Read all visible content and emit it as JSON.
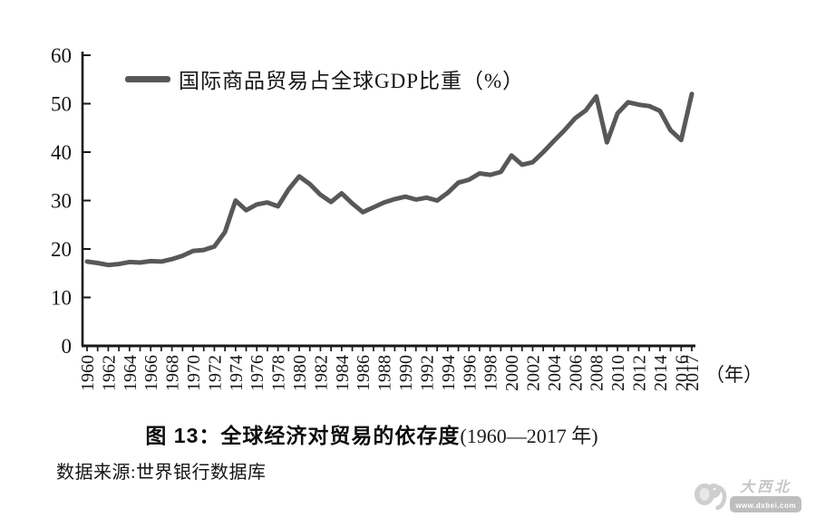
{
  "colors": {
    "line": "#58585b",
    "axis": "#1a1a1a",
    "text": "#141414",
    "watermark_gray": "#c6c6c6"
  },
  "legend": {
    "label": "国际商品贸易占全球GDP比重（%）"
  },
  "axes": {
    "x_unit_label": "（年）",
    "y_ticks": [
      0,
      10,
      20,
      30,
      40,
      50,
      60
    ],
    "x_tick_labels": [
      "1960",
      "1962",
      "1964",
      "1966",
      "1968",
      "1970",
      "1972",
      "1974",
      "1976",
      "1978",
      "1980",
      "1982",
      "1984",
      "1986",
      "1988",
      "1990",
      "1992",
      "1994",
      "1996",
      "1998",
      "2000",
      "2002",
      "2004",
      "2006",
      "2008",
      "2010",
      "2012",
      "2014",
      "2016",
      "2017"
    ]
  },
  "caption": {
    "title_bold": "图 13：全球经济对贸易的依存度",
    "title_range": "(1960—2017 年)"
  },
  "source": "数据来源:世界银行数据库",
  "watermark": {
    "brand": "大西北",
    "url": "www.dxbei.com"
  },
  "chart_data": {
    "type": "line",
    "title": "国际商品贸易占全球GDP比重（%）",
    "xlabel": "（年）",
    "ylabel": "",
    "ylim": [
      0,
      60
    ],
    "xlim": [
      1960,
      2017
    ],
    "grid": false,
    "legend_position": "top-left",
    "line_color": "#58585b",
    "x": [
      1960,
      1961,
      1962,
      1963,
      1964,
      1965,
      1966,
      1967,
      1968,
      1969,
      1970,
      1971,
      1972,
      1973,
      1974,
      1975,
      1976,
      1977,
      1978,
      1979,
      1980,
      1981,
      1982,
      1983,
      1984,
      1985,
      1986,
      1987,
      1988,
      1989,
      1990,
      1991,
      1992,
      1993,
      1994,
      1995,
      1996,
      1997,
      1998,
      1999,
      2000,
      2001,
      2002,
      2003,
      2004,
      2005,
      2006,
      2007,
      2008,
      2009,
      2010,
      2011,
      2012,
      2013,
      2014,
      2015,
      2016,
      2017
    ],
    "values": [
      17.4,
      17.1,
      16.7,
      16.9,
      17.3,
      17.2,
      17.5,
      17.4,
      17.9,
      18.6,
      19.6,
      19.8,
      20.5,
      23.5,
      30.0,
      28.0,
      29.2,
      29.6,
      28.8,
      32.3,
      35.0,
      33.4,
      31.2,
      29.7,
      31.5,
      29.4,
      27.6,
      28.6,
      29.6,
      30.3,
      30.8,
      30.2,
      30.6,
      30.0,
      31.6,
      33.7,
      34.3,
      35.6,
      35.3,
      35.9,
      39.3,
      37.4,
      37.9,
      40.0,
      42.3,
      44.5,
      47.0,
      48.6,
      51.5,
      42.0,
      48.0,
      50.3,
      49.8,
      49.5,
      48.5,
      44.5,
      42.5,
      52.0
    ]
  }
}
